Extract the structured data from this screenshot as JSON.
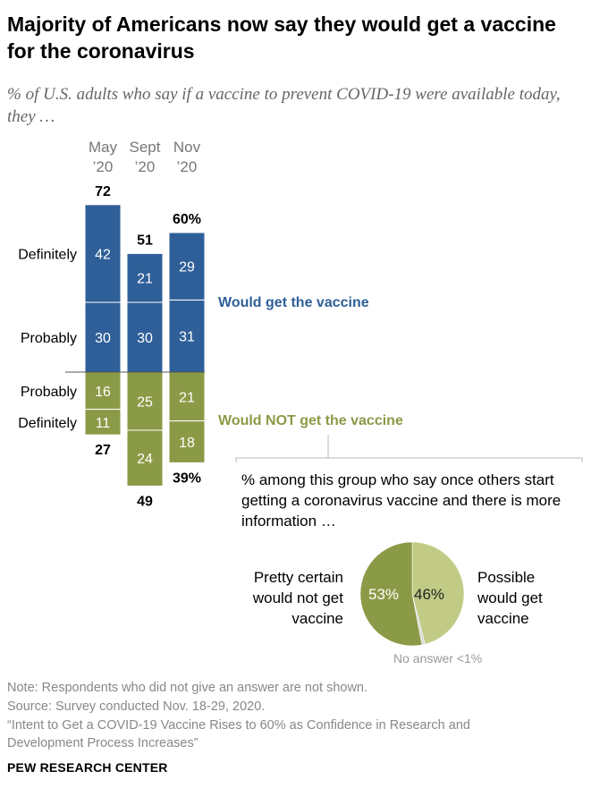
{
  "title": "Majority of Americans now say they would get a vaccine for the coronavirus",
  "subtitle": "% of U.S. adults who say if a vaccine to prevent COVID-19 were available today, they …",
  "chart_data": [
    {
      "type": "bar",
      "stacked": true,
      "diverging": true,
      "categories": [
        [
          "May",
          "’20"
        ],
        [
          "Sept",
          "’20"
        ],
        [
          "Nov",
          "’20"
        ]
      ],
      "groups": [
        {
          "name": "Would get the vaccine",
          "color": "#2f5f98",
          "total_labels": [
            "72",
            "51",
            "60%"
          ],
          "series": [
            {
              "name": "Probably",
              "values": [
                30,
                30,
                31
              ]
            },
            {
              "name": "Definitely",
              "values": [
                42,
                21,
                29
              ]
            }
          ]
        },
        {
          "name": "Would NOT get the vaccine",
          "color": "#8b9a46",
          "total_labels": [
            "27",
            "49",
            "39%"
          ],
          "series": [
            {
              "name": "Probably",
              "values": [
                16,
                25,
                21
              ]
            },
            {
              "name": "Definitely",
              "values": [
                11,
                24,
                18
              ]
            }
          ]
        }
      ],
      "row_labels_up": [
        "Definitely",
        "Probably"
      ],
      "row_labels_down": [
        "Probably",
        "Definitely"
      ]
    },
    {
      "type": "pie",
      "title": "% among this group who say once others start getting a coronavirus vaccine and there is more information …",
      "slices": [
        {
          "name": "Possible would get vaccine",
          "label_lines": [
            "Possible",
            "would get",
            "vaccine"
          ],
          "value": 46,
          "value_label": "46%",
          "color": "#c2cb86"
        },
        {
          "name": "No answer",
          "label": "No answer <1%",
          "value": 1,
          "color": "#dcdcdc"
        },
        {
          "name": "Pretty certain would not get vaccine",
          "label_lines": [
            "Pretty certain",
            "would not get",
            "vaccine"
          ],
          "value": 53,
          "value_label": "53%",
          "color": "#8b9a46"
        }
      ]
    }
  ],
  "notes": [
    "Note: Respondents who did not give an answer are not shown.",
    "Source: Survey conducted Nov. 18-29, 2020.",
    "“Intent to Get a COVID-19 Vaccine Rises to 60% as Confidence in Research and Development Process Increases”"
  ],
  "brand": "PEW RESEARCH CENTER"
}
